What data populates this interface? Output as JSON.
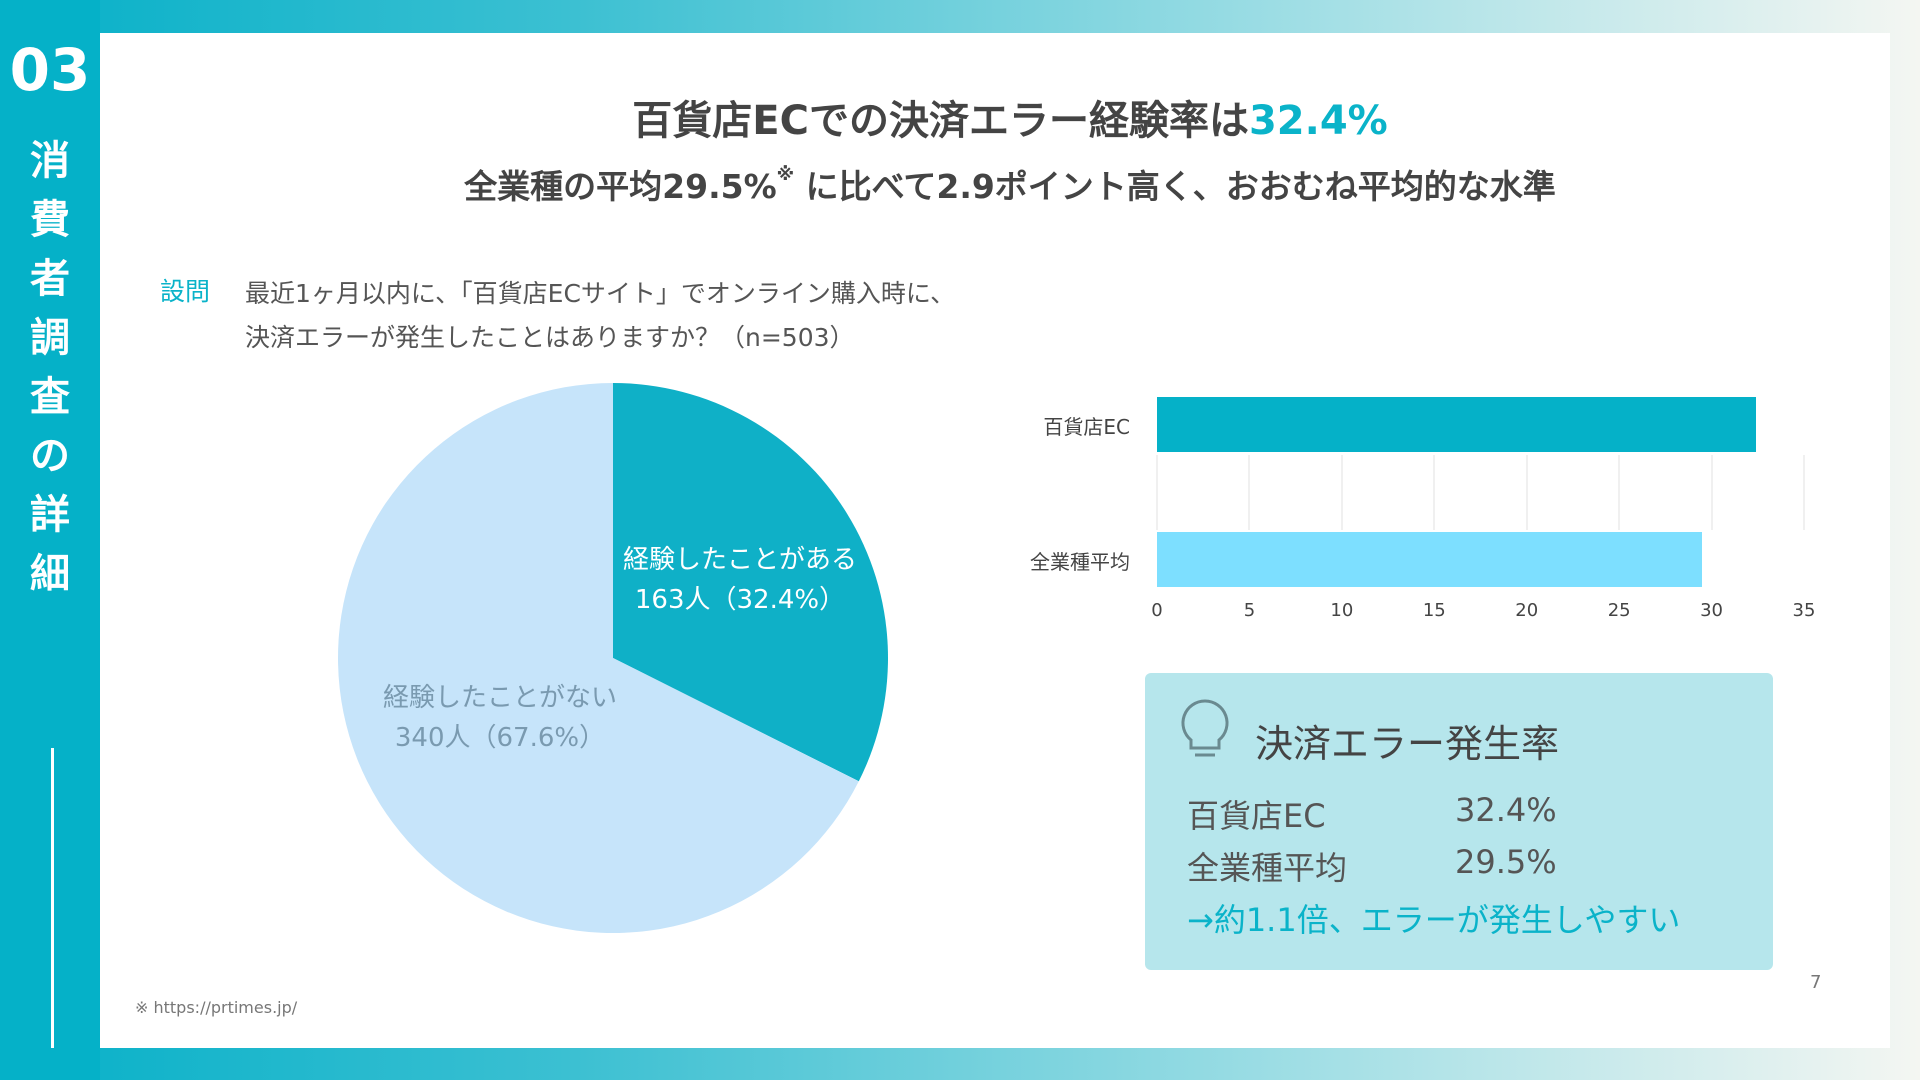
{
  "section": {
    "number": "03",
    "title": "消費者調査の詳細"
  },
  "header": {
    "title_prefix": "百貨店ECでの決済エラー経験率は",
    "title_highlight": "32.4%",
    "subtitle_a": "全業種の平均29.5%",
    "subtitle_note_mark": "※",
    "subtitle_b": "に比べて2.9ポイント高く、おおむね平均的な水準"
  },
  "question": {
    "tag": "設問",
    "line1": "最近1ヶ月以内に、「百貨店ECサイト」でオンライン購入時に、",
    "line2": "決済エラーが発生したことはありますか？（n=503）"
  },
  "chart_data": [
    {
      "type": "pie",
      "slices": [
        {
          "label": "経験したことがある",
          "detail": "163人（32.4%）",
          "value": 32.4,
          "color": "#0fb0c7"
        },
        {
          "label": "経験したことがない",
          "detail": "340人（67.6%）",
          "value": 67.6,
          "color": "#c6e4fa"
        }
      ]
    },
    {
      "type": "bar",
      "orientation": "horizontal",
      "categories": [
        "百貨店EC",
        "全業種平均"
      ],
      "values": [
        32.4,
        29.5
      ],
      "colors": [
        "#05b1c8",
        "#7ddfff"
      ],
      "xlim": [
        0,
        35
      ],
      "xticks": [
        "0",
        "5",
        "10",
        "15",
        "20",
        "25",
        "30",
        "35"
      ],
      "grid": true
    }
  ],
  "infobox": {
    "icon": "lightbulb-icon",
    "title": "決済エラー発生率",
    "rows": [
      {
        "label": "百貨店EC",
        "value": "32.4%"
      },
      {
        "label": "全業種平均",
        "value": "29.5%"
      }
    ],
    "conclusion": "→約1.1倍、エラーが発生しやすい"
  },
  "footnote": "※ https://prtimes.jp/",
  "page_number": "7",
  "colors": {
    "accent": "#05b1c8",
    "panel": "#ffffff",
    "infobox": "#b6e6ec"
  }
}
